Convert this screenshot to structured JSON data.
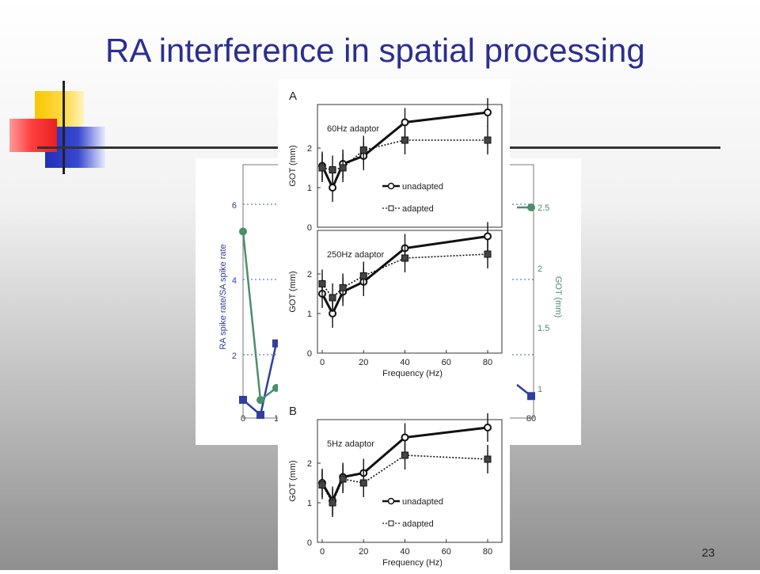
{
  "slide": {
    "title": "RA interference in spatial processing",
    "page_number": "23"
  },
  "chart_data": [
    {
      "type": "line",
      "panel": "back",
      "ylabel_left": "RA spike rate/SA spike rate",
      "ylabel_right": "GOT (mm)",
      "yticks_left": [
        "2",
        "4",
        "6"
      ],
      "yticks_right": [
        "1",
        "1.5",
        "2",
        "2.5"
      ],
      "xticks_visible": [
        "0",
        "1",
        "80"
      ],
      "series": [
        {
          "color": "#2e3f9e",
          "marker": "square",
          "x": [
            0,
            5,
            10,
            80
          ],
          "y": [
            0.8,
            0.4,
            2.3,
            0.9
          ]
        },
        {
          "color": "#4a8f6a",
          "marker": "circle",
          "x": [
            0,
            5,
            10,
            80
          ],
          "y": [
            2.3,
            0.9,
            1.0,
            2.5
          ]
        }
      ]
    },
    {
      "type": "line",
      "panel": "A-top",
      "panel_letter": "A",
      "caption": "60Hz adaptor",
      "ylabel": "GOT (mm)",
      "ylim": [
        0,
        3
      ],
      "yticks": [
        "0",
        "1",
        "2"
      ],
      "legend": [
        "unadapted",
        "adapted"
      ],
      "x": [
        0,
        5,
        10,
        20,
        40,
        80
      ],
      "series": [
        {
          "name": "unadapted",
          "y": [
            1.55,
            1.0,
            1.6,
            1.8,
            2.65,
            2.9
          ]
        },
        {
          "name": "adapted",
          "y": [
            1.5,
            1.45,
            1.5,
            1.95,
            2.2,
            2.2
          ]
        }
      ]
    },
    {
      "type": "line",
      "panel": "A-bottom",
      "caption": "250Hz adaptor",
      "ylabel": "GOT (mm)",
      "xlabel": "Frequency (Hz)",
      "ylim": [
        0,
        3
      ],
      "yticks": [
        "0",
        "1",
        "2"
      ],
      "xticks": [
        "0",
        "20",
        "40",
        "60",
        "80"
      ],
      "x": [
        0,
        5,
        10,
        20,
        40,
        80
      ],
      "series": [
        {
          "name": "unadapted",
          "y": [
            1.5,
            1.0,
            1.55,
            1.8,
            2.65,
            2.95
          ]
        },
        {
          "name": "adapted",
          "y": [
            1.75,
            1.4,
            1.65,
            1.95,
            2.4,
            2.5
          ]
        }
      ]
    },
    {
      "type": "line",
      "panel": "B",
      "panel_letter": "B",
      "caption": "5Hz adaptor",
      "ylabel": "GOT (mm)",
      "xlabel": "Frequency (Hz)",
      "ylim": [
        0,
        3
      ],
      "yticks": [
        "0",
        "1",
        "2"
      ],
      "xticks": [
        "0",
        "20",
        "40",
        "60",
        "80"
      ],
      "legend": [
        "unadapted",
        "adapted"
      ],
      "x": [
        0,
        5,
        10,
        20,
        40,
        80
      ],
      "series": [
        {
          "name": "unadapted",
          "y": [
            1.5,
            1.05,
            1.65,
            1.75,
            2.65,
            2.9
          ]
        },
        {
          "name": "adapted",
          "y": [
            1.45,
            1.0,
            1.6,
            1.5,
            2.2,
            2.1
          ]
        }
      ]
    }
  ]
}
